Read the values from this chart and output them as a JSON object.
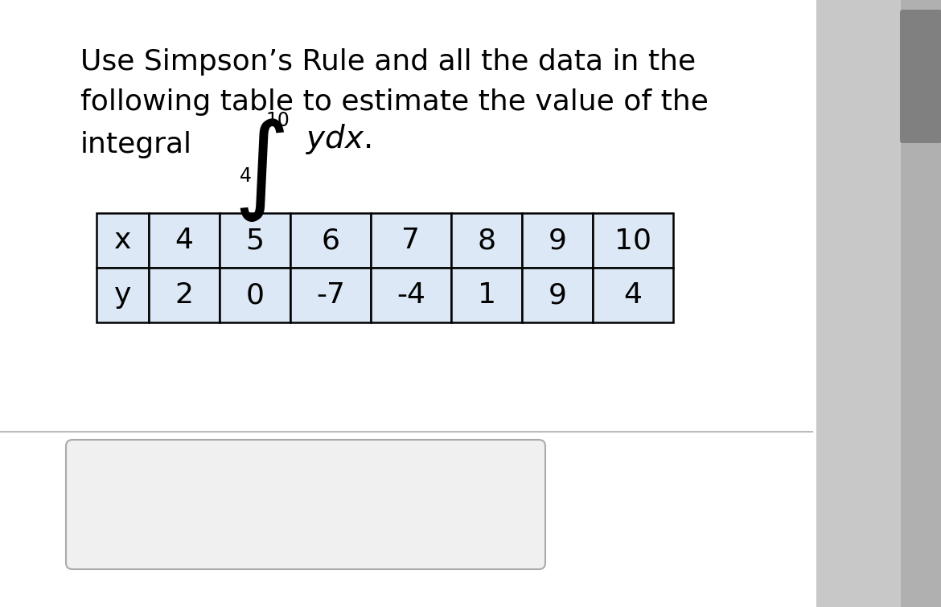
{
  "title_line1": "Use Simpson’s Rule and all the data in the",
  "title_line2": "following table to estimate the value of the",
  "integral_label": "integral",
  "upper_limit": "10",
  "lower_limit": "4",
  "x_values": [
    "x",
    "4",
    "5",
    "6",
    "7",
    "8",
    "9",
    "10"
  ],
  "y_values": [
    "y",
    "2",
    "0",
    "-7",
    "-4",
    "1",
    "9",
    "4"
  ],
  "table_bg_color": "#dce8f5",
  "cell_text_color": "#000000",
  "title_text_color": "#000000",
  "table_border_color": "#000000",
  "fig_bg": "#c8c8c8",
  "card_bg": "#ffffff",
  "scrollbar_color": "#888888",
  "answer_box_bg": "#f0f0f0",
  "answer_box_border": "#aaaaaa",
  "card_shadow": "#e0e0e0"
}
